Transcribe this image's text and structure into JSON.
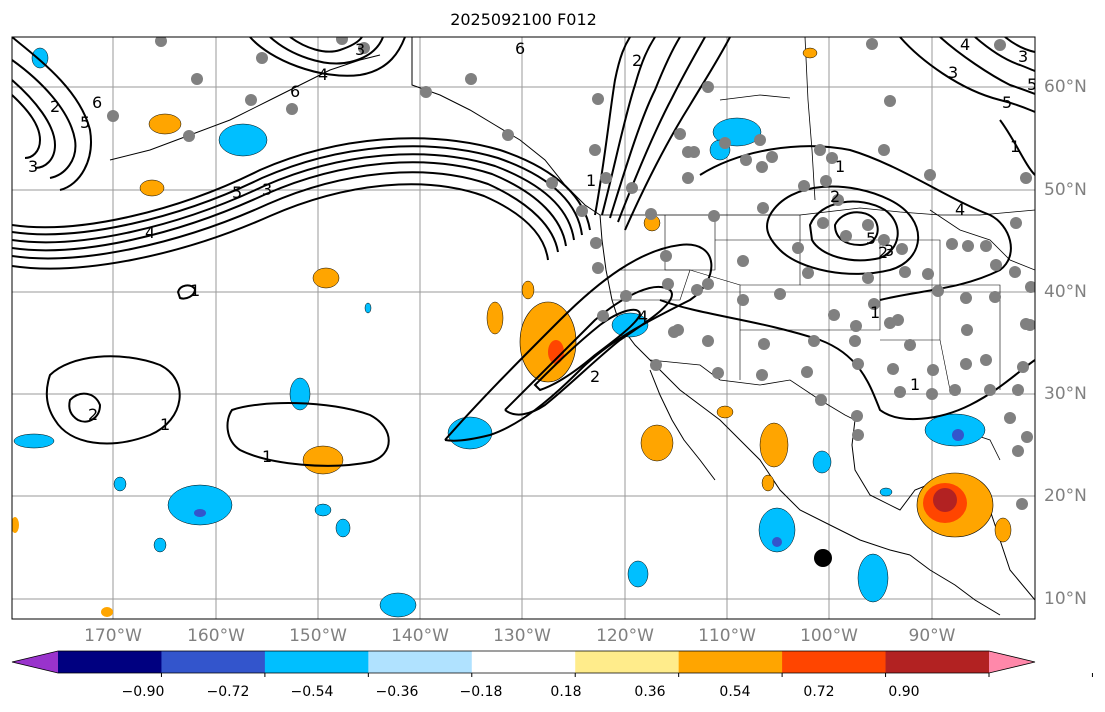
{
  "title": "2025092100 F012",
  "lon_labels": [
    "170°W",
    "160°W",
    "150°W",
    "140°W",
    "130°W",
    "120°W",
    "110°W",
    "100°W",
    "90°W"
  ],
  "lat_labels": [
    "60°N",
    "50°N",
    "40°N",
    "30°N",
    "20°N",
    "10°N"
  ],
  "colorbar": {
    "ticks": [
      "−0.90",
      "−0.72",
      "−0.54",
      "−0.36",
      "−0.18",
      "0.18",
      "0.36",
      "0.54",
      "0.72",
      "0.90"
    ],
    "colors": [
      "#9933cc",
      "#000080",
      "#3355cc",
      "#00bfff",
      "#b0e2ff",
      "#ffffff",
      "#ffec8b",
      "#ffa500",
      "#ff4500",
      "#b22222",
      "#ff88aa"
    ]
  },
  "contour_labels": [
    "1",
    "2",
    "3",
    "4",
    "5",
    "6",
    "3",
    "4",
    "5",
    "6",
    "1",
    "2",
    "3",
    "4",
    "5",
    "2",
    "1",
    "1",
    "2",
    "1",
    "3",
    "4",
    "2",
    "1",
    "5",
    "3",
    "2",
    "1",
    "1",
    "3",
    "4",
    "5",
    "6"
  ]
}
